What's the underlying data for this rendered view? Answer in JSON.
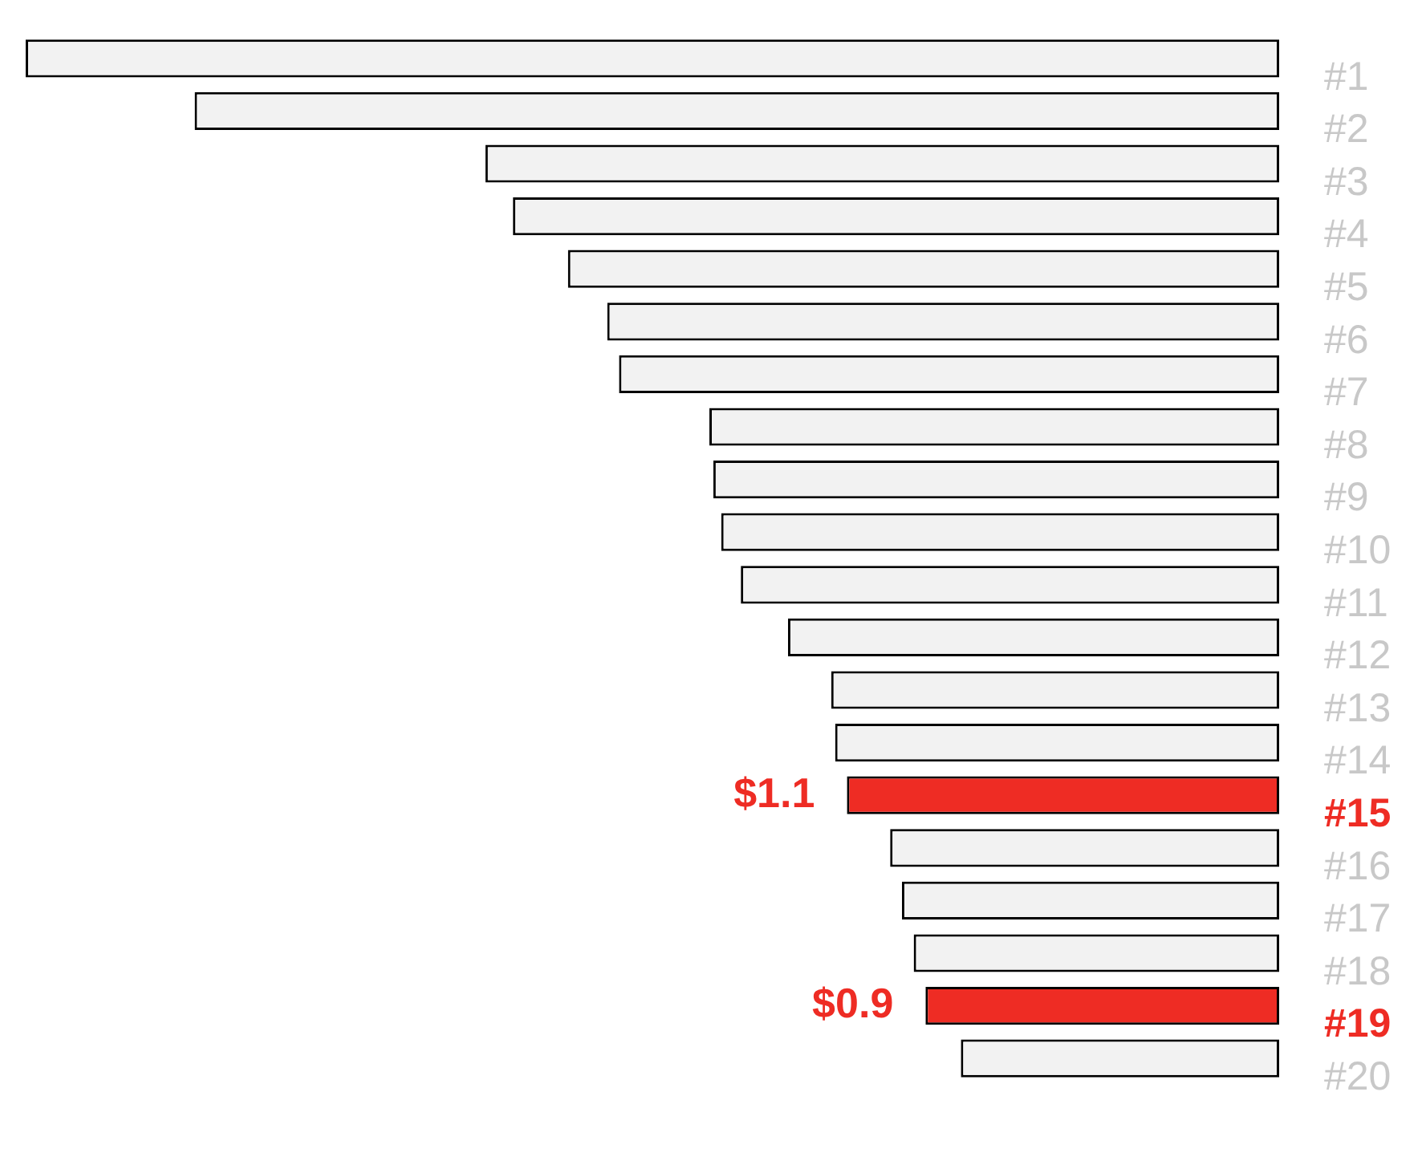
{
  "chart_data": {
    "type": "bar",
    "orientation": "horizontal",
    "categories": [
      "#1",
      "#2",
      "#3",
      "#4",
      "#5",
      "#6",
      "#7",
      "#8",
      "#9",
      "#10",
      "#11",
      "#12",
      "#13",
      "#14",
      "#15",
      "#16",
      "#17",
      "#18",
      "#19",
      "#20"
    ],
    "values": [
      3.19,
      2.76,
      2.02,
      1.95,
      1.81,
      1.71,
      1.68,
      1.45,
      1.44,
      1.42,
      1.37,
      1.25,
      1.14,
      1.13,
      1.1,
      0.99,
      0.96,
      0.93,
      0.9,
      0.81
    ],
    "value_labels": [
      null,
      null,
      null,
      null,
      null,
      null,
      null,
      null,
      null,
      null,
      null,
      null,
      null,
      null,
      "$1.1",
      null,
      null,
      null,
      "$0.9",
      null
    ],
    "colors": [
      "#f2f2f2",
      "#f2f2f2",
      "#f2f2f2",
      "#f2f2f2",
      "#f2f2f2",
      "#f2f2f2",
      "#f2f2f2",
      "#f2f2f2",
      "#f2f2f2",
      "#f2f2f2",
      "#f2f2f2",
      "#f2f2f2",
      "#f2f2f2",
      "#f2f2f2",
      "#ee2c24",
      "#f2f2f2",
      "#f2f2f2",
      "#f2f2f2",
      "#ee2c24",
      "#f2f2f2"
    ],
    "legend": false
  }
}
